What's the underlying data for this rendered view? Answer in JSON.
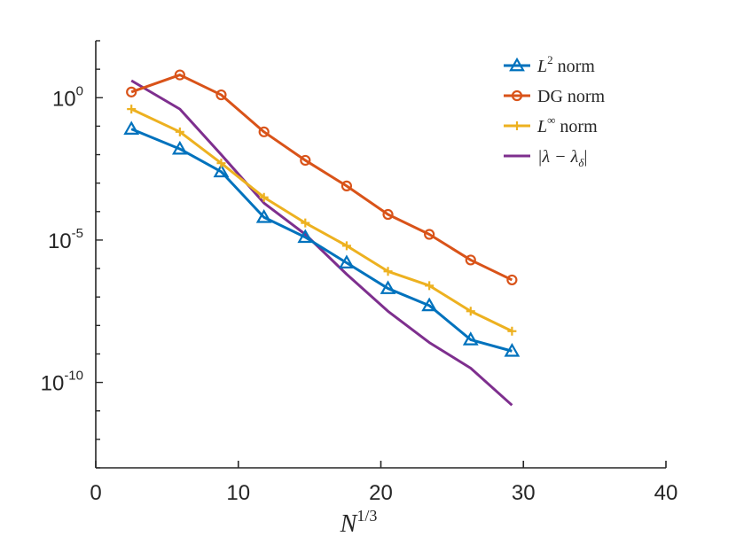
{
  "chart_data": {
    "type": "line",
    "title": "",
    "xlabel": "N^{1/3}",
    "xlabel_base": "N",
    "xlabel_exp": "1/3",
    "ylabel": "",
    "xlim": [
      0,
      40
    ],
    "ylim_log10": [
      -13,
      2
    ],
    "yscale": "log",
    "x_ticks": [
      0,
      10,
      20,
      30,
      40
    ],
    "x_tick_labels": [
      "0",
      "10",
      "20",
      "30",
      "40"
    ],
    "y_ticks_log10": [
      -10,
      -5,
      0
    ],
    "y_tick_base": "10",
    "y_tick_exponents": [
      "-10",
      "-5",
      "0"
    ],
    "legend_position": "top-right",
    "series": [
      {
        "name": "L^2 norm",
        "legend_base": "L",
        "legend_sup": "2",
        "legend_suffix": " norm",
        "color": "#0072BD",
        "marker": "triangle",
        "x": [
          2.5,
          5.9,
          8.8,
          11.8,
          14.7,
          17.6,
          20.5,
          23.4,
          26.3,
          29.2
        ],
        "log10_values": [
          -1.1,
          -1.8,
          -2.6,
          -4.2,
          -4.9,
          -5.8,
          -6.7,
          -7.3,
          -8.5,
          -8.9
        ]
      },
      {
        "name": "DG norm",
        "legend_text": "DG norm",
        "color": "#D95319",
        "marker": "circle",
        "x": [
          2.5,
          5.9,
          8.8,
          11.8,
          14.7,
          17.6,
          20.5,
          23.4,
          26.3,
          29.2
        ],
        "log10_values": [
          0.2,
          0.8,
          0.1,
          -1.2,
          -2.2,
          -3.1,
          -4.1,
          -4.8,
          -5.7,
          -6.4
        ]
      },
      {
        "name": "L^∞ norm",
        "legend_base": "L",
        "legend_sup": "∞",
        "legend_suffix": " norm",
        "color": "#EDB120",
        "marker": "plus",
        "x": [
          2.5,
          5.9,
          8.8,
          11.8,
          14.7,
          17.6,
          20.5,
          23.4,
          26.3,
          29.2
        ],
        "log10_values": [
          -0.4,
          -1.2,
          -2.3,
          -3.5,
          -4.4,
          -5.2,
          -6.1,
          -6.6,
          -7.5,
          -8.2
        ]
      },
      {
        "name": "|λ − λ_δ|",
        "legend_pre": "|λ − λ",
        "legend_sub": "δ",
        "legend_post": "|",
        "color": "#7E2F8E",
        "marker": "none",
        "x": [
          2.5,
          5.9,
          8.8,
          11.8,
          14.7,
          17.6,
          20.5,
          23.4,
          26.3,
          29.2
        ],
        "log10_values": [
          0.6,
          -0.4,
          -2.0,
          -3.7,
          -4.8,
          -6.2,
          -7.5,
          -8.6,
          -9.5,
          -10.8
        ]
      }
    ]
  }
}
